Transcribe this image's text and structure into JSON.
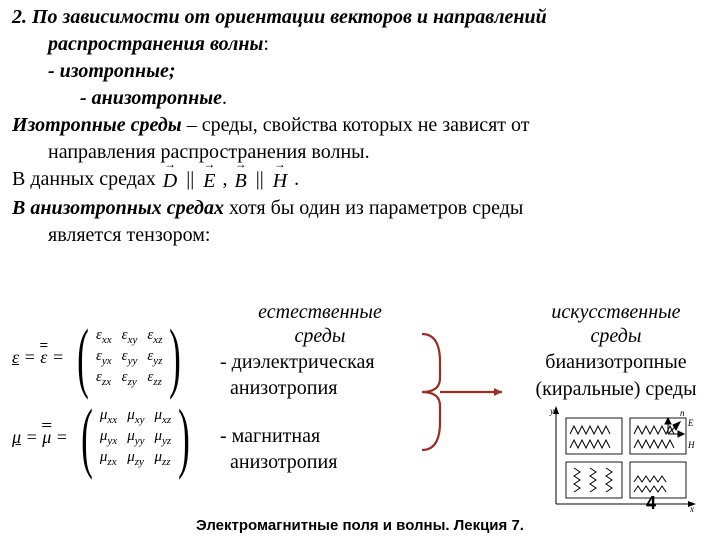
{
  "text": {
    "h1": "2. По зависимости от ориентации векторов и направлений",
    "h1b": "распространения волны",
    "colon": ":",
    "b1": "- изотропные;",
    "b2": "- анизотропные",
    "dot": ".",
    "iso_lead": "Изотропные среды",
    "iso_rest": " – среды, свойства которых не зависят от",
    "iso_rest2": "направления распространения волны.",
    "in_these": "В данных средах  ",
    "comma": " ,  ",
    "period": " .",
    "aniso_lead": "В анизотропных средах",
    "aniso_rest": " хотя бы один из параметров среды",
    "aniso_rest2": "является тензором:"
  },
  "vectors": {
    "D": "D",
    "E": "E",
    "B": "B",
    "H": "H",
    "parallel": "||"
  },
  "eps": {
    "lhs_sym": "ε",
    "cells": [
      "ε",
      "ε",
      "ε",
      "ε",
      "ε",
      "ε",
      "ε",
      "ε",
      "ε"
    ],
    "subs": [
      "xx",
      "xy",
      "xz",
      "yx",
      "yy",
      "yz",
      "zx",
      "zy",
      "zz"
    ]
  },
  "mu": {
    "lhs_sym": "μ",
    "cells": [
      "μ",
      "μ",
      "μ",
      "μ",
      "μ",
      "μ",
      "μ",
      "μ",
      "μ"
    ],
    "subs": [
      "xx",
      "xy",
      "xz",
      "yx",
      "yy",
      "yz",
      "zx",
      "zy",
      "zz"
    ]
  },
  "center": {
    "hd1": "естественные",
    "hd2": "среды",
    "b1a": "- диэлектрическая",
    "b1b": "  анизотропия",
    "b2a": "- магнитная",
    "b2b": "  анизотропия"
  },
  "right": {
    "hd1": "искусственные",
    "hd2": "среды",
    "t1": "бианизотропные",
    "t2": "(киральные) среды"
  },
  "bracket": {
    "color": "#9b2f23",
    "w": 90,
    "h": 140
  },
  "diagram": {
    "stroke": "#000000",
    "fill_bg": "#ffffff",
    "arrow_color": "#000000",
    "label_E": "E",
    "label_H": "H",
    "label_x": "x",
    "label_y": "y",
    "label_z": "z",
    "label_n": "n"
  },
  "footer": {
    "page": "4",
    "lecture": "Электромагнитные поля и волны. Лекция 7."
  },
  "colors": {
    "text": "#000000",
    "bg": "#ffffff"
  }
}
